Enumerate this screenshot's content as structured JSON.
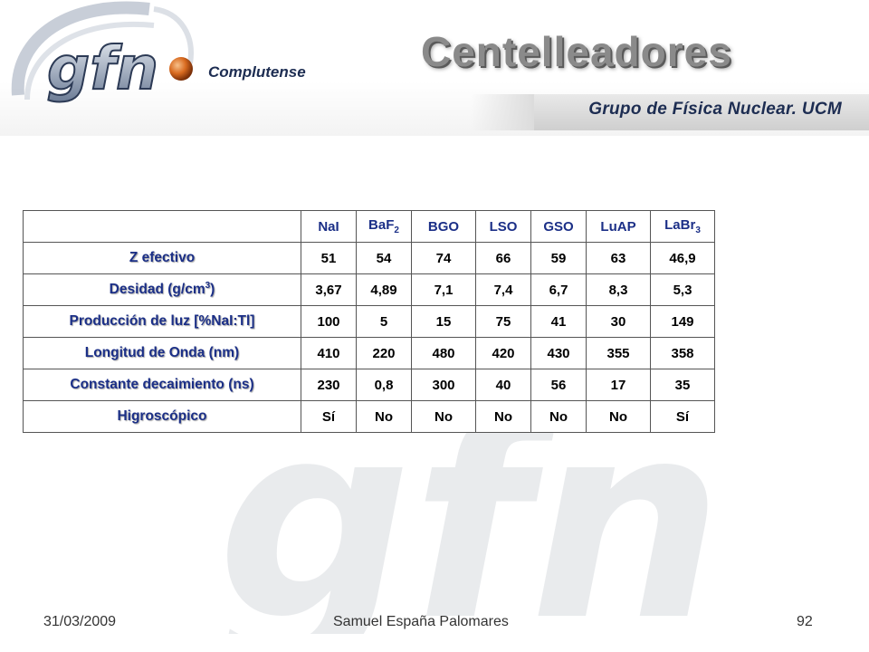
{
  "header": {
    "title": "Centelleadores",
    "subtitle": "Grupo de Física Nuclear. UCM",
    "logo_text": "Complutense"
  },
  "table": {
    "columns": [
      {
        "label": "NaI"
      },
      {
        "label": "BaF",
        "sub": "2"
      },
      {
        "label": "BGO"
      },
      {
        "label": "LSO"
      },
      {
        "label": "GSO"
      },
      {
        "label": "LuAP"
      },
      {
        "label": "LaBr",
        "sub": "3"
      }
    ],
    "rows": [
      {
        "label": "Z efectivo",
        "values": [
          "51",
          "54",
          "74",
          "66",
          "59",
          "63",
          "46,9"
        ]
      },
      {
        "label": "Desidad (g/cm",
        "sup": "3",
        "label_end": ")",
        "values": [
          "3,67",
          "4,89",
          "7,1",
          "7,4",
          "6,7",
          "8,3",
          "5,3"
        ]
      },
      {
        "label": "Producción de luz [%NaI:Tl]",
        "values": [
          "100",
          "5",
          "15",
          "75",
          "41",
          "30",
          "149"
        ]
      },
      {
        "label": "Longitud de Onda (nm)",
        "values": [
          "410",
          "220",
          "480",
          "420",
          "430",
          "355",
          "358"
        ]
      },
      {
        "label": "Constante  decaimiento (ns)",
        "values": [
          "230",
          "0,8",
          "300",
          "40",
          "56",
          "17",
          "35"
        ]
      },
      {
        "label": "Higroscópico",
        "values": [
          "Sí",
          "No",
          "No",
          "No",
          "No",
          "No",
          "Sí"
        ]
      }
    ]
  },
  "footer": {
    "date": "31/03/2009",
    "author": "Samuel España Palomares",
    "page": "92"
  },
  "colors": {
    "row_header": "#1b2f87",
    "subtitle": "#1d2d52",
    "title": "#8a8a8a"
  }
}
